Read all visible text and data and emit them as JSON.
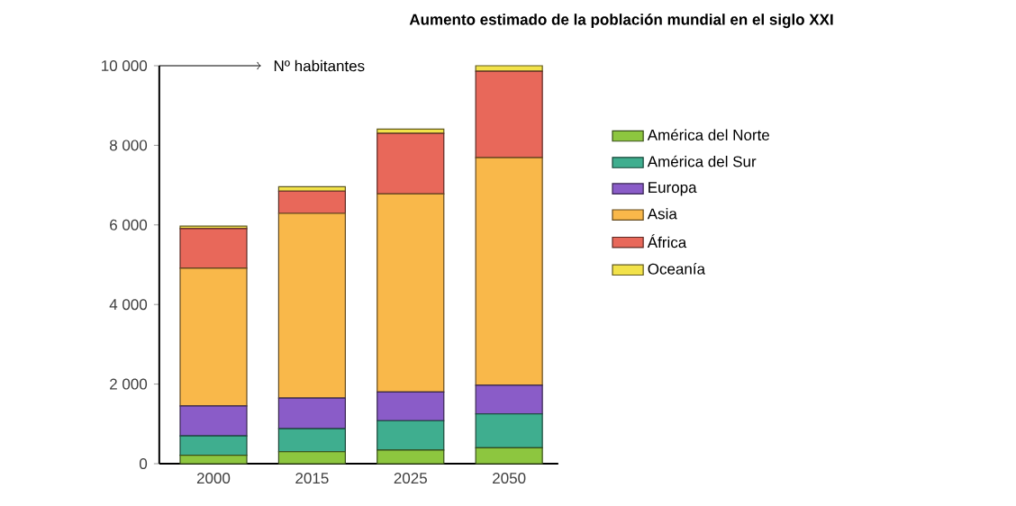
{
  "chart_data": {
    "type": "bar",
    "title": "Aumento estimado de la población mundial en el siglo XXI",
    "ylabel": "Nº habitantes",
    "categories": [
      "2000",
      "2015",
      "2025",
      "2050"
    ],
    "stacked": true,
    "series": [
      {
        "name": "América del Norte",
        "color": "#8dc63f",
        "values": [
          210,
          300,
          340,
          400
        ]
      },
      {
        "name": "América del Sur",
        "color": "#3fae8f",
        "values": [
          490,
          580,
          740,
          850
        ]
      },
      {
        "name": "Europa",
        "color": "#8a5cc8",
        "values": [
          750,
          770,
          720,
          720
        ]
      },
      {
        "name": "Asia",
        "color": "#f9b84a",
        "values": [
          3460,
          4640,
          4980,
          5720
        ]
      },
      {
        "name": "África",
        "color": "#e8685a",
        "values": [
          1000,
          560,
          1520,
          2170
        ]
      },
      {
        "name": "Oceanía",
        "color": "#f2e24a",
        "values": [
          60,
          110,
          110,
          140
        ]
      }
    ],
    "ylim": [
      0,
      10000
    ],
    "yticks": [
      0,
      {
        "value": 2000,
        "label": "2 000"
      },
      {
        "value": 4000,
        "label": "4 000"
      },
      {
        "value": 6000,
        "label": "6 000"
      },
      {
        "value": 8000,
        "label": "8 000"
      },
      {
        "value": 10000,
        "label": "10 000"
      }
    ],
    "grid": false,
    "legend": "right"
  }
}
